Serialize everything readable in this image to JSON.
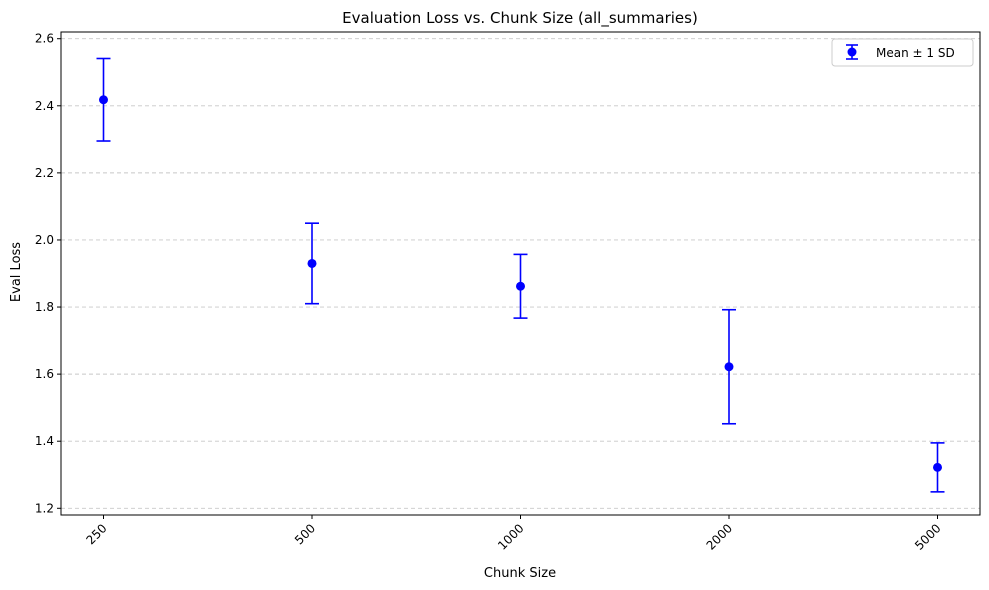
{
  "chart_data": {
    "type": "scatter",
    "title": "Evaluation Loss vs. Chunk Size (all_summaries)",
    "xlabel": "Chunk Size",
    "ylabel": "Eval Loss",
    "categories": [
      "250",
      "500",
      "1000",
      "2000",
      "5000"
    ],
    "series": [
      {
        "name": "Mean ± 1 SD",
        "values": [
          2.418,
          1.93,
          1.862,
          1.622,
          1.322
        ],
        "errors": [
          0.123,
          0.12,
          0.095,
          0.17,
          0.073
        ]
      }
    ],
    "ylim": [
      1.18,
      2.62
    ],
    "yticks": [
      "1.2",
      "1.4",
      "1.6",
      "1.8",
      "2.0",
      "2.2",
      "2.4",
      "2.6"
    ],
    "ytick_values": [
      1.2,
      1.4,
      1.6,
      1.8,
      2.0,
      2.2,
      2.4,
      2.6
    ],
    "grid": "y-dashed",
    "legend": "top-right",
    "colors": {
      "series": "#0000ff",
      "grid": "#c8c8c8",
      "axis": "#000000"
    }
  }
}
